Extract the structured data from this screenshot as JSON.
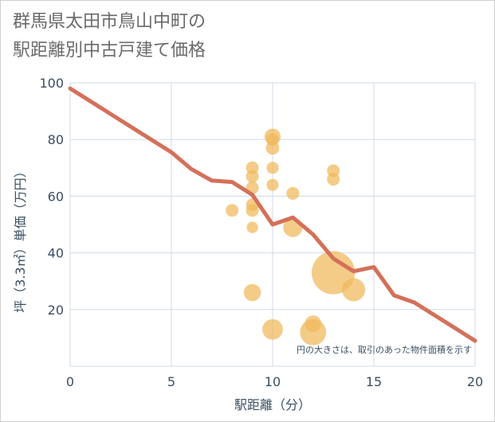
{
  "chart_data": {
    "type": "scatter",
    "title_lines": [
      "群馬県太田市鳥山中町の",
      "駅距離別中古戸建て価格"
    ],
    "xlabel": "駅距離（分）",
    "ylabel": "坪（3.3㎡）単価（万円）",
    "xlim": [
      0,
      20
    ],
    "ylim": [
      0,
      100
    ],
    "x_ticks": [
      0,
      5,
      10,
      15,
      20
    ],
    "y_ticks": [
      20,
      40,
      60,
      80,
      100
    ],
    "grid": true,
    "note": "円の大きさは、取引のあった物件面積を示す",
    "colors": {
      "bubble": "#f0b85a",
      "line": "#d4705a",
      "grid": "#d0dbe6",
      "axis_text": "#3a4e62"
    },
    "series": [
      {
        "type": "line",
        "points": [
          {
            "x": 0,
            "y": 98
          },
          {
            "x": 1,
            "y": 93.5
          },
          {
            "x": 2,
            "y": 89
          },
          {
            "x": 3,
            "y": 84.5
          },
          {
            "x": 4,
            "y": 80
          },
          {
            "x": 5,
            "y": 75.5
          },
          {
            "x": 6,
            "y": 69.5
          },
          {
            "x": 7,
            "y": 65.5
          },
          {
            "x": 8,
            "y": 65
          },
          {
            "x": 9,
            "y": 60.5
          },
          {
            "x": 10,
            "y": 50
          },
          {
            "x": 11,
            "y": 52.5
          },
          {
            "x": 12,
            "y": 46.5
          },
          {
            "x": 13,
            "y": 38
          },
          {
            "x": 14,
            "y": 33.5
          },
          {
            "x": 15,
            "y": 35
          },
          {
            "x": 16,
            "y": 25
          },
          {
            "x": 17,
            "y": 22.5
          },
          {
            "x": 18,
            "y": 18
          },
          {
            "x": 19,
            "y": 13.5
          },
          {
            "x": 20,
            "y": 9
          }
        ]
      },
      {
        "type": "bubble",
        "points": [
          {
            "x": 8,
            "y": 55,
            "size": 1
          },
          {
            "x": 9,
            "y": 70,
            "size": 1
          },
          {
            "x": 9,
            "y": 67,
            "size": 1
          },
          {
            "x": 9,
            "y": 63,
            "size": 1
          },
          {
            "x": 9,
            "y": 57,
            "size": 1
          },
          {
            "x": 9,
            "y": 55,
            "size": 1
          },
          {
            "x": 9,
            "y": 49,
            "size": 0.8
          },
          {
            "x": 9,
            "y": 26,
            "size": 1.8
          },
          {
            "x": 10,
            "y": 81,
            "size": 1.6
          },
          {
            "x": 10,
            "y": 80,
            "size": 1
          },
          {
            "x": 10,
            "y": 77,
            "size": 1.1
          },
          {
            "x": 10,
            "y": 70,
            "size": 0.9
          },
          {
            "x": 10,
            "y": 64,
            "size": 0.9
          },
          {
            "x": 10,
            "y": 13,
            "size": 2.6
          },
          {
            "x": 11,
            "y": 61,
            "size": 1
          },
          {
            "x": 11,
            "y": 49,
            "size": 2.3
          },
          {
            "x": 12,
            "y": 15,
            "size": 1.7
          },
          {
            "x": 12,
            "y": 12,
            "size": 4.2
          },
          {
            "x": 13,
            "y": 69,
            "size": 1
          },
          {
            "x": 13,
            "y": 66,
            "size": 1
          },
          {
            "x": 13,
            "y": 33,
            "size": 11.5
          },
          {
            "x": 14,
            "y": 27,
            "size": 3.3
          }
        ]
      }
    ]
  }
}
